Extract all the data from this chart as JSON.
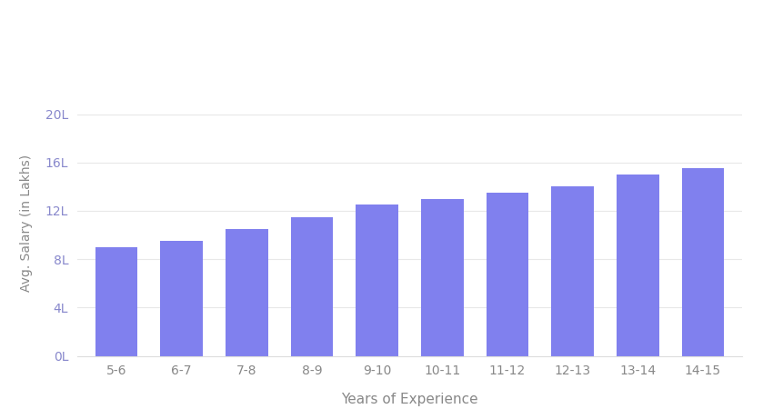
{
  "categories": [
    "5-6",
    "6-7",
    "7-8",
    "8-9",
    "9-10",
    "10-11",
    "11-12",
    "12-13",
    "13-14",
    "14-15"
  ],
  "values": [
    9.0,
    9.5,
    10.5,
    11.5,
    12.5,
    13.0,
    13.5,
    14.0,
    15.0,
    15.5
  ],
  "bar_color": "#8080EE",
  "xlabel": "Years of Experience",
  "ylabel": "Avg. Salary (in Lakhs)",
  "yticks": [
    0,
    4,
    8,
    12,
    16,
    20
  ],
  "ytick_labels": [
    "0L",
    "4L",
    "8L",
    "12L",
    "16L",
    "20L"
  ],
  "ylim": [
    0,
    22
  ],
  "header_bg_color": "#4B2D7F",
  "background_color": "#FFFFFF",
  "label_color": "#888888",
  "tick_color": "#8888CC",
  "bar_alpha": 1.0
}
